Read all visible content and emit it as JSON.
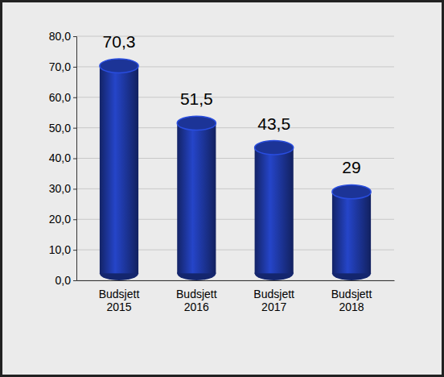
{
  "chart_data": {
    "type": "bar",
    "categories": [
      "Budsjett 2015",
      "Budsjett 2016",
      "Budsjett 2017",
      "Budsjett 2018"
    ],
    "values": [
      70.3,
      51.5,
      43.5,
      29
    ],
    "value_labels": [
      "70,3",
      "51,5",
      "43,5",
      "29"
    ],
    "color": "#1f3aa8",
    "ylim": [
      0,
      80
    ],
    "yticks": [
      {
        "value": 0,
        "label": "0,0"
      },
      {
        "value": 10,
        "label": "10,0"
      },
      {
        "value": 20,
        "label": "20,0"
      },
      {
        "value": 30,
        "label": "30,0"
      },
      {
        "value": 40,
        "label": "40,0"
      },
      {
        "value": 50,
        "label": "50,0"
      },
      {
        "value": 60,
        "label": "60,0"
      },
      {
        "value": 70,
        "label": "70,0"
      },
      {
        "value": 80,
        "label": "80,0"
      }
    ],
    "grid": true,
    "data_labels": true
  }
}
